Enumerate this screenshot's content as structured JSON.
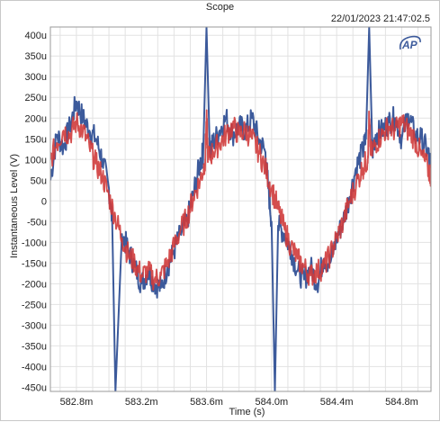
{
  "window_title": "Scope",
  "timestamp": "22/01/2023 21:47:02.5",
  "logo_text": "AP",
  "colors": {
    "blue": "#3c5a9b",
    "red": "#cf3b3b",
    "grid": "#e2e2e2",
    "axis": "#9a9a9a"
  },
  "chart_data": {
    "type": "line",
    "xlabel": "Time (s)",
    "ylabel": "Instantaneous Level (V)",
    "xlim": [
      582.64,
      584.98
    ],
    "ylim": [
      -0.00046,
      0.00042
    ],
    "grid": true,
    "x_ticks": [
      {
        "v": 582.8,
        "label": "582.8m"
      },
      {
        "v": 583.2,
        "label": "583.2m"
      },
      {
        "v": 583.6,
        "label": "583.6m"
      },
      {
        "v": 584.0,
        "label": "584.0m"
      },
      {
        "v": 584.4,
        "label": "584.4m"
      },
      {
        "v": 584.8,
        "label": "584.8m"
      }
    ],
    "y_ticks": [
      {
        "v": 0.0004,
        "label": "400u"
      },
      {
        "v": 0.00035,
        "label": "350u"
      },
      {
        "v": 0.0003,
        "label": "300u"
      },
      {
        "v": 0.00025,
        "label": "250u"
      },
      {
        "v": 0.0002,
        "label": "200u"
      },
      {
        "v": 0.00015,
        "label": "150u"
      },
      {
        "v": 0.0001,
        "label": "100u"
      },
      {
        "v": 5e-05,
        "label": "50u"
      },
      {
        "v": 0,
        "label": "0"
      },
      {
        "v": -5e-05,
        "label": "-50u"
      },
      {
        "v": -0.0001,
        "label": "-100u"
      },
      {
        "v": -0.00015,
        "label": "-150u"
      },
      {
        "v": -0.0002,
        "label": "-200u"
      },
      {
        "v": -0.00025,
        "label": "-250u"
      },
      {
        "v": -0.0003,
        "label": "-300u"
      },
      {
        "v": -0.00035,
        "label": "-350u"
      },
      {
        "v": -0.0004,
        "label": "-400u"
      },
      {
        "v": -0.00045,
        "label": "-450u"
      }
    ],
    "series": [
      {
        "color": "#3c5a9b",
        "x": [
          582.64,
          582.68,
          582.72,
          582.76,
          582.8,
          582.84,
          582.88,
          582.92,
          582.96,
          583.0,
          583.02,
          583.04,
          583.08,
          583.12,
          583.16,
          583.2,
          583.24,
          583.28,
          583.32,
          583.36,
          583.4,
          583.44,
          583.48,
          583.52,
          583.56,
          583.58,
          583.6,
          583.62,
          583.64,
          583.68,
          583.72,
          583.76,
          583.8,
          583.84,
          583.88,
          583.92,
          583.96,
          583.98,
          584.0,
          584.02,
          584.04,
          584.08,
          584.12,
          584.16,
          584.2,
          584.24,
          584.28,
          584.32,
          584.36,
          584.4,
          584.44,
          584.48,
          584.52,
          584.56,
          584.58,
          584.6,
          584.62,
          584.64,
          584.68,
          584.72,
          584.76,
          584.8,
          584.84,
          584.88,
          584.92,
          584.96,
          584.98
        ],
        "y": [
          5e-05,
          0.00016,
          0.00013,
          0.00018,
          0.00024,
          0.0002,
          0.00017,
          0.00015,
          0.0001,
          3e-05,
          -5e-05,
          -0.00046,
          -8e-05,
          -0.00012,
          -0.00016,
          -0.0002,
          -0.00017,
          -0.0002,
          -0.00021,
          -0.00016,
          -0.00012,
          -8e-05,
          -5e-05,
          2e-05,
          9e-05,
          0.00012,
          0.00042,
          0.00012,
          0.00014,
          0.00017,
          0.0002,
          0.00016,
          0.00018,
          0.00017,
          0.0002,
          0.00015,
          0.00012,
          3e-05,
          -5e-05,
          -0.00046,
          -6e-05,
          -8e-05,
          -0.00012,
          -0.00017,
          -0.00019,
          -0.00016,
          -0.0002,
          -0.00014,
          -0.00015,
          -9e-05,
          -5e-05,
          1e-05,
          8e-05,
          0.00012,
          0.00015,
          0.00042,
          0.00012,
          0.00016,
          0.00017,
          0.00019,
          0.0002,
          0.00015,
          0.00021,
          0.00016,
          0.00015,
          0.00012,
          8e-05
        ]
      },
      {
        "color": "#cf3b3b",
        "x": [
          582.64,
          582.68,
          582.72,
          582.76,
          582.8,
          582.84,
          582.88,
          582.92,
          582.96,
          583.0,
          583.04,
          583.08,
          583.12,
          583.16,
          583.2,
          583.24,
          583.28,
          583.32,
          583.36,
          583.4,
          583.44,
          583.48,
          583.52,
          583.56,
          583.59,
          583.6,
          583.61,
          583.64,
          583.68,
          583.72,
          583.76,
          583.8,
          583.84,
          583.88,
          583.92,
          583.96,
          584.0,
          584.04,
          584.08,
          584.12,
          584.16,
          584.2,
          584.24,
          584.28,
          584.32,
          584.36,
          584.4,
          584.44,
          584.48,
          584.52,
          584.56,
          584.59,
          584.6,
          584.61,
          584.64,
          584.68,
          584.72,
          584.76,
          584.8,
          584.84,
          584.88,
          584.92,
          584.96,
          584.98
        ],
        "y": [
          0.0001,
          0.00014,
          0.00017,
          0.00016,
          0.00019,
          0.00017,
          0.00013,
          9e-05,
          6e-05,
          1e-05,
          -4e-05,
          -9e-05,
          -0.00013,
          -0.00015,
          -0.00018,
          -0.00017,
          -0.00019,
          -0.00018,
          -0.00015,
          -0.00011,
          -7e-05,
          -4e-05,
          1e-05,
          5e-05,
          9e-05,
          0.0002,
          0.0001,
          0.00012,
          0.00014,
          0.00016,
          0.00018,
          0.00016,
          0.00017,
          0.00015,
          0.00012,
          8e-05,
          3e-05,
          -2e-05,
          -7e-05,
          -0.00011,
          -0.00014,
          -0.00016,
          -0.00018,
          -0.00017,
          -0.00016,
          -0.00013,
          -9e-05,
          -5e-05,
          0.0,
          4e-05,
          8e-05,
          0.0001,
          0.0002,
          0.00011,
          0.00014,
          0.00016,
          0.00018,
          0.00017,
          0.00019,
          0.00017,
          0.00015,
          0.00011,
          8e-05,
          6e-05
        ]
      }
    ]
  }
}
